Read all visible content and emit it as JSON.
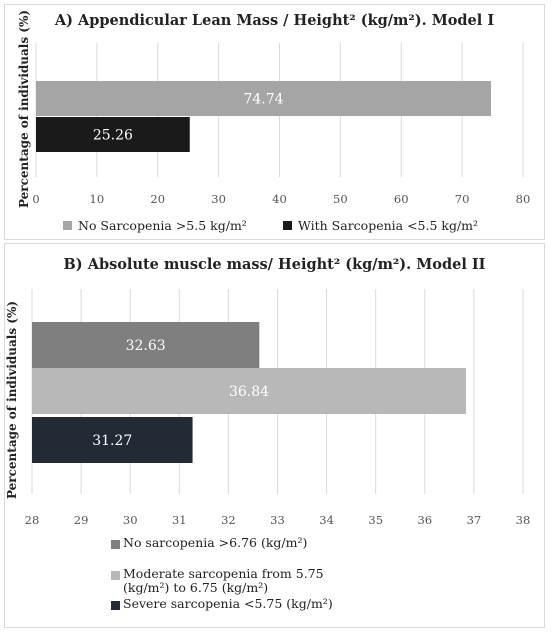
{
  "charts_text": {
    "a": {
      "title": "A) Appendicular Lean Mass / Height² (kg/m²). Model I",
      "ylabel": "Percentage of individuals (%)",
      "legend": [
        "No Sarcopenia >5.5 kg/m²",
        "With Sarcopenia <5.5 kg/m²"
      ]
    },
    "b": {
      "title": "B) Absolute muscle mass/ Height² (kg/m²). Model II",
      "ylabel": "Percentage of individuals (%)",
      "legend": [
        "No sarcopenia >6.76  (kg/m²)",
        "Moderate sarcopenia from 5.75 (kg/m²) to 6.75 (kg/m²)",
        "Severe sarcopenia <5.75 (kg/m²)"
      ]
    }
  },
  "chart_data": [
    {
      "type": "bar",
      "orientation": "horizontal",
      "title": "A) Appendicular Lean Mass / Height² (kg/m²). Model I",
      "ylabel": "Percentage of individuals (%)",
      "xlim": [
        0,
        80
      ],
      "xticks": [
        0,
        10,
        20,
        30,
        40,
        50,
        60,
        70,
        80
      ],
      "grid": true,
      "legend_position": "bottom",
      "series": [
        {
          "name": "No Sarcopenia >5.5 kg/m²",
          "values": [
            74.74
          ],
          "labels": [
            "74.74"
          ],
          "color": "#a5a5a5"
        },
        {
          "name": "With Sarcopenia <5.5 kg/m²",
          "values": [
            25.26
          ],
          "labels": [
            "25.26"
          ],
          "color": "#1a1a1a"
        }
      ]
    },
    {
      "type": "bar",
      "orientation": "horizontal",
      "title": "B) Absolute muscle mass/ Height² (kg/m²). Model II",
      "ylabel": "Percentage of individuals (%)",
      "xlim": [
        28,
        38
      ],
      "xticks": [
        28,
        29,
        30,
        31,
        32,
        33,
        34,
        35,
        36,
        37,
        38
      ],
      "grid": true,
      "legend_position": "bottom",
      "series": [
        {
          "name": "No sarcopenia >6.76  (kg/m²)",
          "values": [
            32.63
          ],
          "labels": [
            "32.63"
          ],
          "color": "#7f7f7f"
        },
        {
          "name": "Moderate sarcopenia from 5.75 (kg/m²) to 6.75 (kg/m²)",
          "values": [
            36.84
          ],
          "labels": [
            "36.84"
          ],
          "color": "#b8b8b8"
        },
        {
          "name": "Severe sarcopenia <5.75 (kg/m²)",
          "values": [
            31.27
          ],
          "labels": [
            "31.27"
          ],
          "color": "#222a35"
        }
      ]
    }
  ]
}
